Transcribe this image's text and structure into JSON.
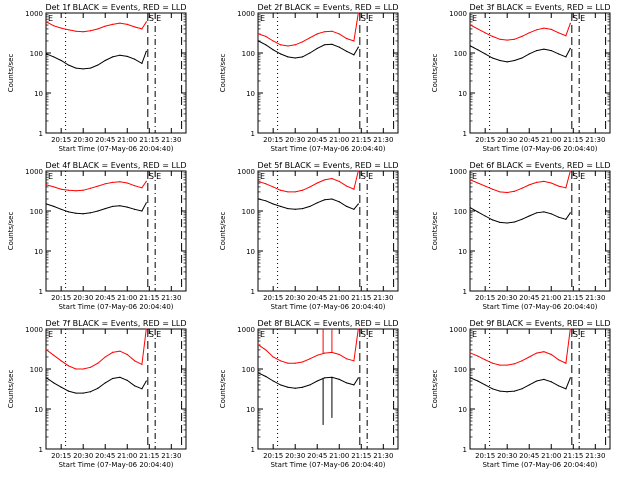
{
  "colors": {
    "events": "#000000",
    "lld": "#ff0000",
    "axes": "#000000",
    "background": "#ffffff"
  },
  "common": {
    "ylabel": "Counts/sec",
    "xlabel": "Start Time (07-May-06 20:04:40)",
    "x_tick_labels": [
      "20:15",
      "20:30",
      "20:45",
      "21:00",
      "21:15",
      "21:30"
    ],
    "y_tick_labels": [
      "1",
      "10",
      "100",
      "1000"
    ],
    "top_left_marker": "E",
    "saa_marker_s": "S",
    "saa_marker_e": "E"
  },
  "chart_data": [
    {
      "type": "line",
      "detector": "1f",
      "title": "Det 1f BLACK = Events, RED = LLD",
      "y_scale": "log",
      "ylim": [
        1,
        1000
      ],
      "xlim": [
        "20:04:40",
        "21:40:00"
      ],
      "x": [
        "20:05",
        "20:10",
        "20:15",
        "20:20",
        "20:25",
        "20:30",
        "20:35",
        "20:40",
        "20:45",
        "20:50",
        "20:55",
        "21:00",
        "21:05",
        "21:10",
        "21:13"
      ],
      "series": [
        {
          "name": "RED = LLD",
          "color": "#ff0000",
          "values": [
            600,
            480,
            420,
            380,
            350,
            340,
            360,
            400,
            470,
            520,
            560,
            520,
            450,
            400,
            600
          ]
        },
        {
          "name": "BLACK = Events",
          "color": "#000000",
          "values": [
            95,
            80,
            65,
            50,
            42,
            40,
            42,
            50,
            65,
            80,
            88,
            82,
            70,
            55,
            110
          ]
        }
      ],
      "vlines": [
        {
          "x": "20:18",
          "style": "dotted"
        },
        {
          "x": "21:14",
          "style": "dashed"
        },
        {
          "x": "21:19",
          "style": "dash-dot"
        },
        {
          "x": "21:37",
          "style": "dashed"
        }
      ]
    },
    {
      "type": "line",
      "detector": "2f",
      "title": "Det 2f BLACK = Events, RED = LLD",
      "y_scale": "log",
      "ylim": [
        1,
        1000
      ],
      "xlim": [
        "20:04:40",
        "21:40:00"
      ],
      "x": [
        "20:05",
        "20:10",
        "20:15",
        "20:20",
        "20:25",
        "20:30",
        "20:35",
        "20:40",
        "20:45",
        "20:50",
        "20:55",
        "21:00",
        "21:05",
        "21:10",
        "21:13"
      ],
      "series": [
        {
          "name": "RED = LLD",
          "color": "#ff0000",
          "values": [
            300,
            260,
            200,
            160,
            150,
            160,
            190,
            240,
            300,
            340,
            350,
            300,
            230,
            200,
            1000
          ]
        },
        {
          "name": "BLACK = Events",
          "color": "#000000",
          "values": [
            200,
            160,
            120,
            95,
            80,
            75,
            80,
            100,
            130,
            160,
            165,
            140,
            110,
            90,
            140
          ]
        }
      ],
      "vlines": [
        {
          "x": "20:18",
          "style": "dotted"
        },
        {
          "x": "21:14",
          "style": "dashed"
        },
        {
          "x": "21:19",
          "style": "dash-dot"
        },
        {
          "x": "21:37",
          "style": "dashed"
        }
      ]
    },
    {
      "type": "line",
      "detector": "3f",
      "title": "Det 3f BLACK = Events, RED = LLD",
      "y_scale": "log",
      "ylim": [
        1,
        1000
      ],
      "xlim": [
        "20:04:40",
        "21:40:00"
      ],
      "x": [
        "20:05",
        "20:10",
        "20:15",
        "20:20",
        "20:25",
        "20:30",
        "20:35",
        "20:40",
        "20:45",
        "20:50",
        "20:55",
        "21:00",
        "21:05",
        "21:10",
        "21:13"
      ],
      "series": [
        {
          "name": "RED = LLD",
          "color": "#ff0000",
          "values": [
            500,
            400,
            320,
            260,
            220,
            210,
            220,
            260,
            320,
            380,
            420,
            390,
            320,
            270,
            550
          ]
        },
        {
          "name": "BLACK = Events",
          "color": "#000000",
          "values": [
            150,
            120,
            95,
            75,
            65,
            60,
            65,
            75,
            95,
            115,
            125,
            115,
            95,
            80,
            130
          ]
        }
      ],
      "vlines": [
        {
          "x": "20:18",
          "style": "dotted"
        },
        {
          "x": "21:14",
          "style": "dashed"
        },
        {
          "x": "21:19",
          "style": "dash-dot"
        },
        {
          "x": "21:37",
          "style": "dashed"
        }
      ]
    },
    {
      "type": "line",
      "detector": "4f",
      "title": "Det 4f BLACK = Events, RED = LLD",
      "y_scale": "log",
      "ylim": [
        1,
        1000
      ],
      "xlim": [
        "20:04:40",
        "21:40:00"
      ],
      "x": [
        "20:05",
        "20:10",
        "20:15",
        "20:20",
        "20:25",
        "20:30",
        "20:35",
        "20:40",
        "20:45",
        "20:50",
        "20:55",
        "21:00",
        "21:05",
        "21:10",
        "21:13"
      ],
      "series": [
        {
          "name": "RED = LLD",
          "color": "#ff0000",
          "values": [
            450,
            400,
            350,
            330,
            320,
            330,
            370,
            420,
            480,
            520,
            540,
            500,
            430,
            380,
            550
          ]
        },
        {
          "name": "BLACK = Events",
          "color": "#000000",
          "values": [
            150,
            130,
            110,
            95,
            88,
            85,
            90,
            100,
            115,
            130,
            135,
            125,
            110,
            100,
            160
          ]
        }
      ],
      "vlines": [
        {
          "x": "20:18",
          "style": "dotted"
        },
        {
          "x": "21:14",
          "style": "dashed"
        },
        {
          "x": "21:19",
          "style": "dash-dot"
        },
        {
          "x": "21:37",
          "style": "dashed"
        }
      ]
    },
    {
      "type": "line",
      "detector": "5f",
      "title": "Det 5f BLACK = Events, RED = LLD",
      "y_scale": "log",
      "ylim": [
        1,
        1000
      ],
      "xlim": [
        "20:04:40",
        "21:40:00"
      ],
      "x": [
        "20:05",
        "20:10",
        "20:15",
        "20:20",
        "20:25",
        "20:30",
        "20:35",
        "20:40",
        "20:45",
        "20:50",
        "20:55",
        "21:00",
        "21:05",
        "21:10",
        "21:13"
      ],
      "series": [
        {
          "name": "RED = LLD",
          "color": "#ff0000",
          "values": [
            550,
            480,
            400,
            330,
            300,
            300,
            330,
            400,
            500,
            600,
            650,
            550,
            420,
            350,
            1000
          ]
        },
        {
          "name": "BLACK = Events",
          "color": "#000000",
          "values": [
            200,
            180,
            150,
            130,
            115,
            110,
            115,
            130,
            160,
            190,
            200,
            170,
            130,
            110,
            150
          ]
        }
      ],
      "vlines": [
        {
          "x": "20:18",
          "style": "dotted"
        },
        {
          "x": "21:14",
          "style": "dashed"
        },
        {
          "x": "21:19",
          "style": "dash-dot"
        },
        {
          "x": "21:37",
          "style": "dashed"
        }
      ]
    },
    {
      "type": "line",
      "detector": "6f",
      "title": "Det 6f BLACK = Events, RED = LLD",
      "y_scale": "log",
      "ylim": [
        1,
        1000
      ],
      "xlim": [
        "20:04:40",
        "21:40:00"
      ],
      "x": [
        "20:05",
        "20:10",
        "20:15",
        "20:20",
        "20:25",
        "20:30",
        "20:35",
        "20:40",
        "20:45",
        "20:50",
        "20:55",
        "21:00",
        "21:05",
        "21:10",
        "21:13"
      ],
      "series": [
        {
          "name": "RED = LLD",
          "color": "#ff0000",
          "values": [
            600,
            500,
            420,
            350,
            300,
            290,
            310,
            370,
            450,
            520,
            550,
            500,
            420,
            380,
            1000
          ]
        },
        {
          "name": "BLACK = Events",
          "color": "#000000",
          "values": [
            120,
            95,
            75,
            60,
            52,
            50,
            53,
            62,
            75,
            90,
            95,
            85,
            70,
            62,
            90
          ]
        }
      ],
      "vlines": [
        {
          "x": "20:18",
          "style": "dotted"
        },
        {
          "x": "21:14",
          "style": "dashed"
        },
        {
          "x": "21:19",
          "style": "dash-dot"
        },
        {
          "x": "21:37",
          "style": "dashed"
        }
      ]
    },
    {
      "type": "line",
      "detector": "7f",
      "title": "Det 7f BLACK = Events, RED = LLD",
      "y_scale": "log",
      "ylim": [
        1,
        1000
      ],
      "xlim": [
        "20:04:40",
        "21:40:00"
      ],
      "x": [
        "20:05",
        "20:10",
        "20:15",
        "20:20",
        "20:25",
        "20:30",
        "20:35",
        "20:40",
        "20:45",
        "20:50",
        "20:55",
        "21:00",
        "21:05",
        "21:10",
        "21:13"
      ],
      "series": [
        {
          "name": "RED = LLD",
          "color": "#ff0000",
          "values": [
            300,
            220,
            160,
            120,
            100,
            100,
            110,
            140,
            200,
            260,
            280,
            230,
            160,
            130,
            1000
          ]
        },
        {
          "name": "BLACK = Events",
          "color": "#000000",
          "values": [
            60,
            45,
            35,
            28,
            25,
            25,
            27,
            33,
            45,
            58,
            62,
            52,
            38,
            32,
            50
          ]
        }
      ],
      "vlines": [
        {
          "x": "20:18",
          "style": "dotted"
        },
        {
          "x": "21:14",
          "style": "dashed"
        },
        {
          "x": "21:19",
          "style": "dash-dot"
        },
        {
          "x": "21:37",
          "style": "dashed"
        }
      ]
    },
    {
      "type": "line",
      "detector": "8f",
      "title": "Det 8f BLACK = Events, RED = LLD",
      "y_scale": "log",
      "ylim": [
        1,
        1000
      ],
      "xlim": [
        "20:04:40",
        "21:40:00"
      ],
      "x": [
        "20:05",
        "20:10",
        "20:15",
        "20:20",
        "20:25",
        "20:30",
        "20:35",
        "20:40",
        "20:45",
        "20:50",
        "20:55",
        "21:00",
        "21:05",
        "21:10",
        "21:13"
      ],
      "series": [
        {
          "name": "RED = LLD",
          "color": "#ff0000",
          "values": [
            400,
            300,
            200,
            160,
            140,
            140,
            150,
            180,
            220,
            250,
            260,
            230,
            180,
            160,
            1000
          ]
        },
        {
          "name": "BLACK = Events",
          "color": "#000000",
          "values": [
            80,
            65,
            50,
            40,
            35,
            33,
            35,
            40,
            50,
            60,
            62,
            55,
            45,
            40,
            60
          ]
        }
      ],
      "spikes": [
        {
          "x": "20:49",
          "series": "RED = LLD",
          "y": 1000
        },
        {
          "x": "20:55",
          "series": "RED = LLD",
          "y": 1000
        },
        {
          "x": "20:49",
          "series": "BLACK = Events",
          "y": 4
        },
        {
          "x": "20:55",
          "series": "BLACK = Events",
          "y": 6
        }
      ],
      "vlines": [
        {
          "x": "20:18",
          "style": "dotted"
        },
        {
          "x": "21:14",
          "style": "dashed"
        },
        {
          "x": "21:19",
          "style": "dash-dot"
        },
        {
          "x": "21:37",
          "style": "dashed"
        }
      ]
    },
    {
      "type": "line",
      "detector": "9f",
      "title": "Det 9f BLACK = Events, RED = LLD",
      "y_scale": "log",
      "ylim": [
        1,
        1000
      ],
      "xlim": [
        "20:04:40",
        "21:40:00"
      ],
      "x": [
        "20:05",
        "20:10",
        "20:15",
        "20:20",
        "20:25",
        "20:30",
        "20:35",
        "20:40",
        "20:45",
        "20:50",
        "20:55",
        "21:00",
        "21:05",
        "21:10",
        "21:13"
      ],
      "series": [
        {
          "name": "RED = LLD",
          "color": "#ff0000",
          "values": [
            250,
            210,
            170,
            140,
            125,
            125,
            135,
            160,
            200,
            250,
            270,
            230,
            170,
            140,
            1000
          ]
        },
        {
          "name": "BLACK = Events",
          "color": "#000000",
          "values": [
            60,
            50,
            40,
            32,
            28,
            27,
            28,
            32,
            40,
            50,
            55,
            48,
            38,
            32,
            60
          ]
        }
      ],
      "vlines": [
        {
          "x": "20:18",
          "style": "dotted"
        },
        {
          "x": "21:14",
          "style": "dashed"
        },
        {
          "x": "21:19",
          "style": "dash-dot"
        },
        {
          "x": "21:37",
          "style": "dashed"
        }
      ]
    }
  ]
}
